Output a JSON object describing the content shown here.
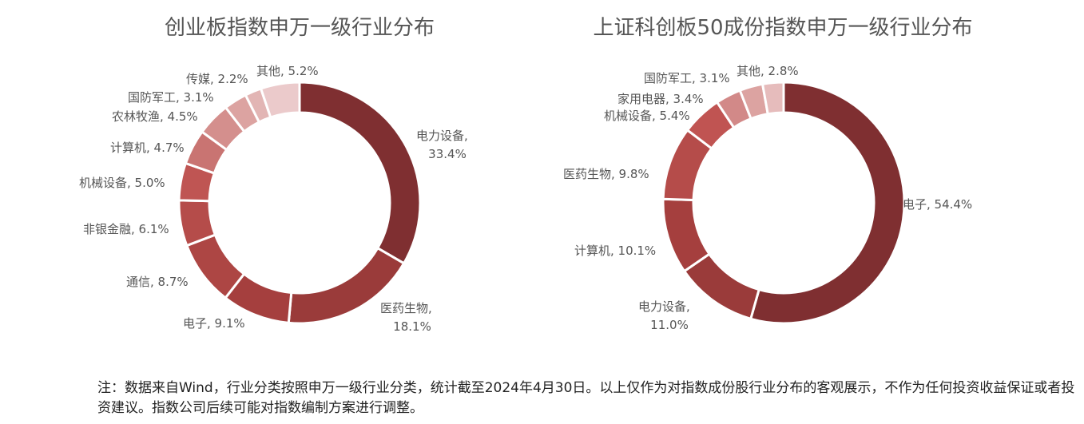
{
  "chart_data": [
    {
      "type": "pie",
      "title": "创业板指数申万一级行业分布",
      "slices": [
        {
          "label": "电力设备",
          "value": 33.4,
          "text": "电力设备,",
          "text2": "33.4%"
        },
        {
          "label": "医药生物",
          "value": 18.1,
          "text": "医药生物,",
          "text2": "18.1%"
        },
        {
          "label": "电子",
          "value": 9.1,
          "text": "电子, 9.1%"
        },
        {
          "label": "通信",
          "value": 8.7,
          "text": "通信, 8.7%"
        },
        {
          "label": "非银金融",
          "value": 6.1,
          "text": "非银金融, 6.1%"
        },
        {
          "label": "机械设备",
          "value": 5.0,
          "text": "机械设备, 5.0%"
        },
        {
          "label": "计算机",
          "value": 4.7,
          "text": "计算机, 4.7%"
        },
        {
          "label": "农林牧渔",
          "value": 4.5,
          "text": "农林牧渔, 4.5%"
        },
        {
          "label": "国防军工",
          "value": 3.1,
          "text": "国防军工, 3.1%"
        },
        {
          "label": "传媒",
          "value": 2.2,
          "text": "传媒, 2.2%"
        },
        {
          "label": "其他",
          "value": 5.2,
          "text": "其他, 5.2%"
        }
      ],
      "colors": [
        "#7f2f31",
        "#9a3b3a",
        "#a53f3e",
        "#ad4644",
        "#b54c4a",
        "#bf5553",
        "#c97472",
        "#d48f8d",
        "#dca3a1",
        "#e2b5b4",
        "#ebcacb"
      ]
    },
    {
      "type": "pie",
      "title": "上证科创板50成份指数申万一级行业分布",
      "slices": [
        {
          "label": "电子",
          "value": 54.4,
          "text": "电子, 54.4%"
        },
        {
          "label": "电力设备",
          "value": 11.0,
          "text": "电力设备,",
          "text2": "11.0%"
        },
        {
          "label": "计算机",
          "value": 10.1,
          "text": "计算机, 10.1%"
        },
        {
          "label": "医药生物",
          "value": 9.8,
          "text": "医药生物, 9.8%"
        },
        {
          "label": "机械设备",
          "value": 5.4,
          "text": "机械设备, 5.4%"
        },
        {
          "label": "家用电器",
          "value": 3.4,
          "text": "家用电器, 3.4%"
        },
        {
          "label": "国防军工",
          "value": 3.1,
          "text": "国防军工, 3.1%"
        },
        {
          "label": "其他",
          "value": 2.8,
          "text": "其他, 2.8%"
        }
      ],
      "colors": [
        "#7f2f31",
        "#9a3b3a",
        "#a53f3e",
        "#b54c4a",
        "#c05452",
        "#d28988",
        "#dca3a1",
        "#e6bcbc"
      ]
    }
  ],
  "note": {
    "text": "注：数据来自Wind，行业分类按照申万一级行业分类，统计截至2024年4月30日。以上仅作为对指数成份股行业分布的客观展示，不作为任何投资收益保证或者投资建议。指数公司后续可能对指数编制方案进行调整。"
  }
}
